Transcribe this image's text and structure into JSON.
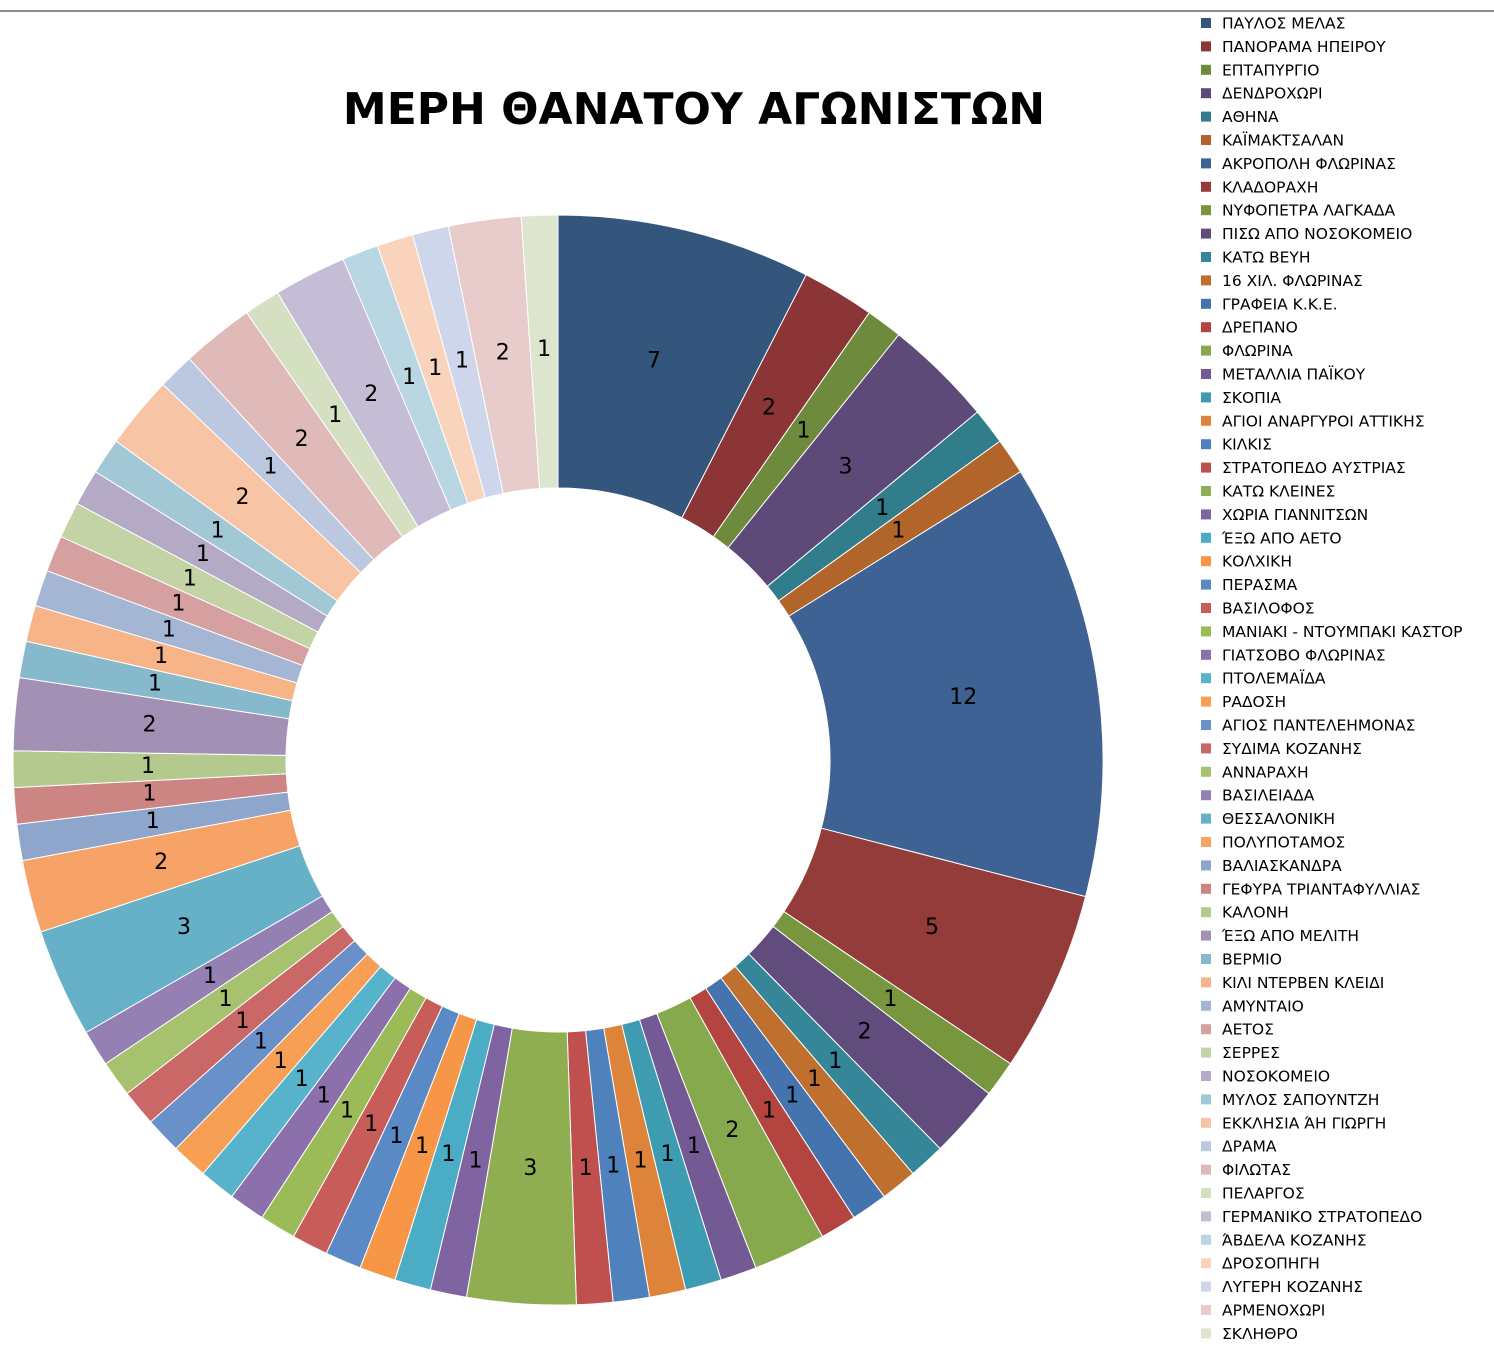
{
  "chart_data": {
    "type": "donut",
    "title": "ΜΕΡΗ ΘΑΝΑΤΟΥ ΑΓΩΝΙΣΤΩΝ",
    "categories": [
      "ΠΑΥΛΟΣ ΜΕΛΑΣ",
      "ΠΑΝΟΡΑΜΑ ΗΠΕΙΡΟΥ",
      "ΕΠΤΑΠΥΡΓΙΟ",
      "ΔΕΝΔΡΟΧΩΡΙ",
      "ΑΘΗΝΑ",
      "ΚΑΪΜΑΚΤΣΑΛΑΝ",
      "ΑΚΡΟΠΟΛΗ ΦΛΩΡΙΝΑΣ",
      "ΚΛΑΔΟΡΑΧΗ",
      "ΝΥΦΟΠΕΤΡΑ ΛΑΓΚΑΔΑ",
      "ΠΙΣΩ ΑΠΟ ΝΟΣΟΚΟΜΕΙΟ",
      "ΚΑΤΩ ΒΕΥΗ",
      "16 ΧΙΛ. ΦΛΩΡΙΝΑΣ",
      "ΓΡΑΦΕΙΑ Κ.Κ.Ε.",
      "ΔΡΕΠΑΝΟ",
      "ΦΛΩΡΙΝΑ",
      "ΜΕΤΑΛΛΙΑ ΠΑΪΚΟΥ",
      "ΣΚΟΠΙΑ",
      "ΑΓΙΟΙ ΑΝΑΡΓΥΡΟΙ ΑΤΤΙΚΗΣ",
      "ΚΙΛΚΙΣ",
      "ΣΤΡΑΤΟΠΕΔΟ ΑΥΣΤΡΙΑΣ",
      "ΚΑΤΩ ΚΛΕΙΝΕΣ",
      "ΧΩΡΙΑ ΓΙΑΝΝΙΤΣΩΝ",
      "ΈΞΩ ΑΠΟ ΑΕΤΟ",
      "ΚΟΛΧΙΚΗ",
      "ΠΕΡΑΣΜΑ",
      "ΒΑΣΙΛΟΦΟΣ",
      "ΜΑΝΙΑΚΙ - ΝΤΟΥΜΠΑΚΙ ΚΑΣΤΟΡ",
      "ΓΙΑΤΣΟΒΟ ΦΛΩΡΙΝΑΣ",
      "ΠΤΟΛΕΜΑΪΔΑ",
      "ΡΑΔΟΣΗ",
      "ΑΓΙΟΣ ΠΑΝΤΕΛΕΗΜΟΝΑΣ",
      "ΣΥΔΙΜΑ ΚΟΖΑΝΗΣ",
      "ΑΝΝΑΡΑΧΗ",
      "ΒΑΣΙΛΕΙΑΔΑ",
      "ΘΕΣΣΑΛΟΝΙΚΗ",
      "ΠΟΛΥΠΟΤΑΜΟΣ",
      "ΒΑΛΙΑΣΚΑΝΔΡΑ",
      "ΓΕΦΥΡΑ ΤΡΙΑΝΤΑΦΥΛΛΙΑΣ",
      "ΚΑΛΟΝΗ",
      "ΈΞΩ ΑΠΟ ΜΕΛΙΤΗ",
      "ΒΕΡΜΙΟ",
      "ΚΙΛΙ ΝΤΕΡΒΕΝ ΚΛΕΙΔΙ",
      "ΑΜΥΝΤΑΙΟ",
      "ΑΕΤΟΣ",
      "ΣΕΡΡΕΣ",
      "ΝΟΣΟΚΟΜΕΙΟ",
      "ΜΥΛΟΣ ΣΑΠΟΥΝΤΖΗ",
      "ΕΚΚΛΗΣΙΑ ΆΗ ΓΙΩΡΓΗ",
      "ΔΡΑΜΑ",
      "ΦΙΛΩΤΑΣ",
      "ΠΕΛΑΡΓΟΣ",
      "ΓΕΡΜΑΝΙΚΟ ΣΤΡΑΤΟΠΕΔΟ",
      "ΆΒΔΕΛΑ ΚΟΖΑΝΗΣ",
      "ΔΡΟΣΟΠΗΓΗ",
      "ΛΥΓΕΡΗ ΚΟΖΑΝΗΣ",
      "ΑΡΜΕΝΟΧΩΡΙ",
      "ΣΚΛΗΘΡΟ"
    ],
    "values": [
      7,
      2,
      1,
      3,
      1,
      1,
      12,
      5,
      1,
      2,
      1,
      1,
      1,
      1,
      2,
      1,
      1,
      1,
      1,
      1,
      3,
      1,
      1,
      1,
      1,
      1,
      1,
      1,
      1,
      1,
      1,
      1,
      1,
      1,
      3,
      2,
      1,
      1,
      1,
      2,
      1,
      1,
      1,
      1,
      1,
      1,
      1,
      2,
      1,
      2,
      1,
      2,
      1,
      1,
      1,
      2,
      1
    ],
    "colors": [
      "#34567c",
      "#8b3536",
      "#6e8a3c",
      "#5d4a78",
      "#327d8c",
      "#b2652b",
      "#3e6293",
      "#943c3a",
      "#77963e",
      "#624c7e",
      "#36869a",
      "#bf6f2e",
      "#4473ae",
      "#b3443f",
      "#87a94e",
      "#735a94",
      "#3e9cb2",
      "#de843a",
      "#4f81bd",
      "#c0504d",
      "#8fae52",
      "#8064a2",
      "#4bacc6",
      "#f79646",
      "#5a8ac6",
      "#c85c59",
      "#9bbb59",
      "#8b70ab",
      "#57b3cc",
      "#f7a055",
      "#6a90c9",
      "#c96866",
      "#a6c26f",
      "#9580b3",
      "#66b1c8",
      "#f7a266",
      "#8fa6cc",
      "#cd8584",
      "#b3c98e",
      "#a391b5",
      "#86b9cb",
      "#f7b488",
      "#a5b6d5",
      "#d5a09f",
      "#c3d3a6",
      "#b4aac6",
      "#a2c8d6",
      "#f8c4a6",
      "#bcc7e0",
      "#dfbab9",
      "#d4e0c1",
      "#c5bdd6",
      "#b8d7e2",
      "#fad3bd",
      "#cdd6eb",
      "#e8cccb",
      "#dde5ce"
    ]
  }
}
